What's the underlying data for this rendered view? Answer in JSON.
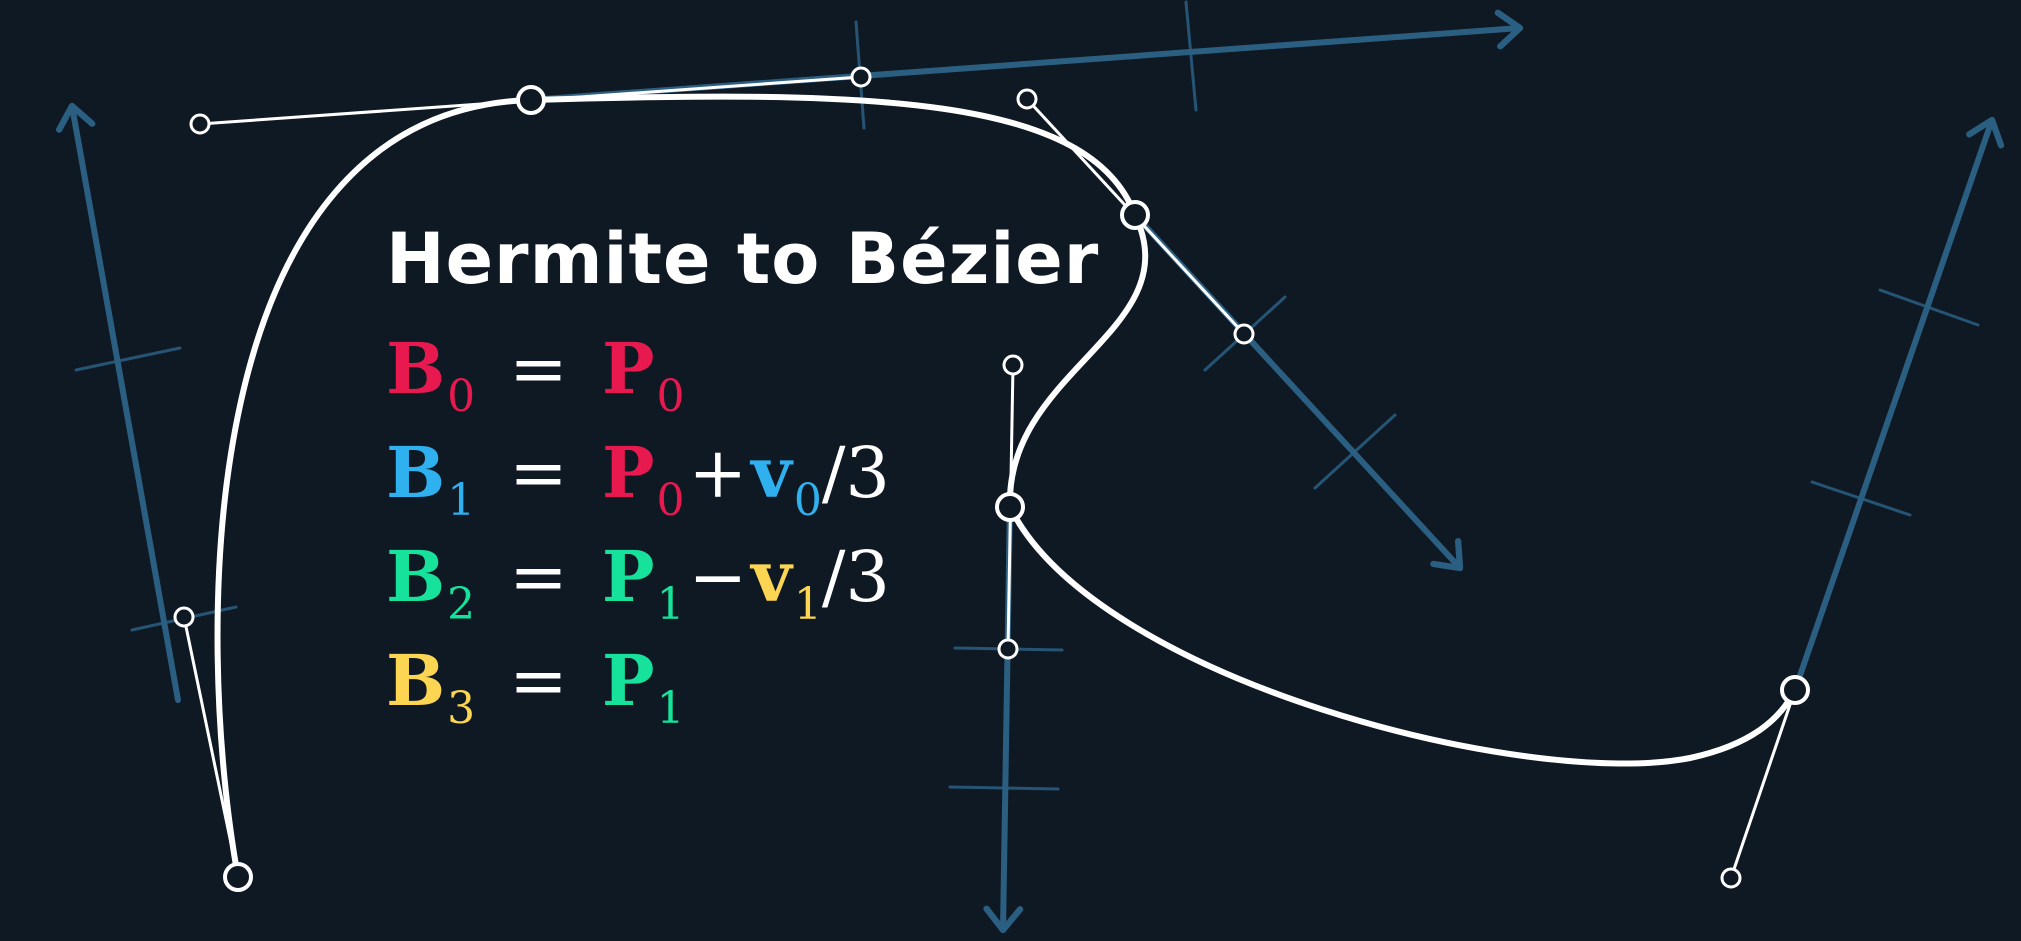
{
  "title": "Hermite to Bézier",
  "colors": {
    "background": "#0f1924",
    "curve": "#ffffff",
    "tangent_axis": "#2b5f82",
    "red": "#e8194f",
    "blue": "#2fb0ef",
    "green": "#17e29b",
    "yellow": "#fcd553"
  },
  "equations": [
    {
      "lhs": {
        "symbol": "B",
        "index": "0",
        "color": "#e8194f"
      },
      "equals": "=",
      "rhs": [
        {
          "symbol": "P",
          "index": "0",
          "color": "#e8194f",
          "style": "bold"
        }
      ]
    },
    {
      "lhs": {
        "symbol": "B",
        "index": "1",
        "color": "#2fb0ef"
      },
      "equals": "=",
      "rhs": [
        {
          "symbol": "P",
          "index": "0",
          "color": "#e8194f",
          "style": "bold"
        },
        {
          "op": "+"
        },
        {
          "symbol": "v",
          "index": "0",
          "color": "#2fb0ef",
          "style": "bold"
        },
        {
          "op": "/3"
        }
      ]
    },
    {
      "lhs": {
        "symbol": "B",
        "index": "2",
        "color": "#17e29b"
      },
      "equals": "=",
      "rhs": [
        {
          "symbol": "P",
          "index": "1",
          "color": "#17e29b",
          "style": "bold"
        },
        {
          "op": "−"
        },
        {
          "symbol": "v",
          "index": "1",
          "color": "#fcd553",
          "style": "bold"
        },
        {
          "op": "/3"
        }
      ]
    },
    {
      "lhs": {
        "symbol": "B",
        "index": "3",
        "color": "#fcd553"
      },
      "equals": "=",
      "rhs": [
        {
          "symbol": "P",
          "index": "1",
          "color": "#17e29b",
          "style": "bold"
        }
      ]
    }
  ]
}
